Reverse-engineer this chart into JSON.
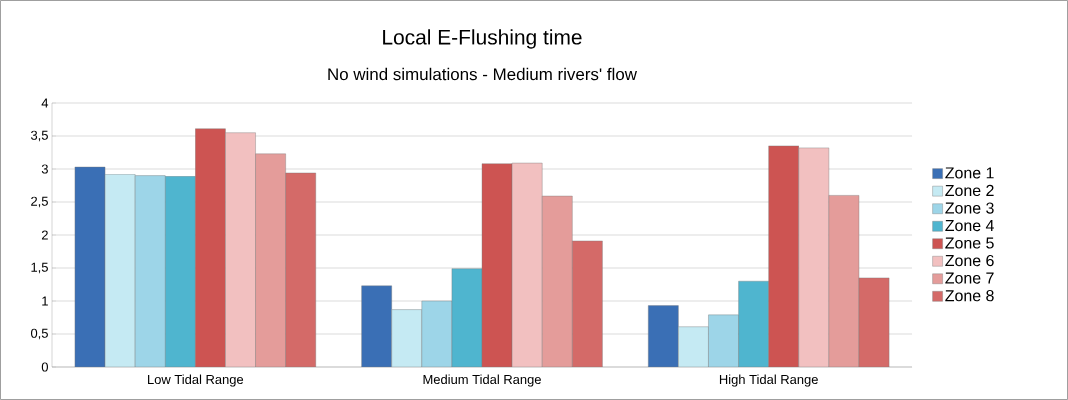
{
  "chart_data": {
    "type": "bar",
    "title": "Local E-Flushing time",
    "subtitle": "No wind simulations - Medium rivers' flow",
    "categories": [
      "Low Tidal Range",
      "Medium Tidal Range",
      "High Tidal Range"
    ],
    "series": [
      {
        "name": "Zone 1",
        "color": "#3a6fb5",
        "values": [
          3.03,
          1.23,
          0.93
        ]
      },
      {
        "name": "Zone 2",
        "color": "#c5eaf3",
        "values": [
          2.92,
          0.87,
          0.61
        ]
      },
      {
        "name": "Zone 3",
        "color": "#9dd5e8",
        "values": [
          2.9,
          1.0,
          0.79
        ]
      },
      {
        "name": "Zone 4",
        "color": "#4fb5cf",
        "values": [
          2.89,
          1.49,
          1.3
        ]
      },
      {
        "name": "Zone 5",
        "color": "#cd5452",
        "values": [
          3.61,
          3.08,
          3.35
        ]
      },
      {
        "name": "Zone 6",
        "color": "#f2c0c0",
        "values": [
          3.55,
          3.09,
          3.32
        ]
      },
      {
        "name": "Zone 7",
        "color": "#e49c9a",
        "values": [
          3.23,
          2.59,
          2.6
        ]
      },
      {
        "name": "Zone 8",
        "color": "#d46a68",
        "values": [
          2.94,
          1.91,
          1.35
        ]
      }
    ],
    "ylim": [
      0,
      4
    ],
    "yticks": [
      0,
      {
        "value": 0.5,
        "label": "0,5"
      },
      1,
      {
        "value": 1.5,
        "label": "1,5"
      },
      2,
      {
        "value": 2.5,
        "label": "2,5"
      },
      3,
      {
        "value": 3.5,
        "label": "3,5"
      },
      4
    ],
    "grid": "y",
    "legend": "right"
  }
}
